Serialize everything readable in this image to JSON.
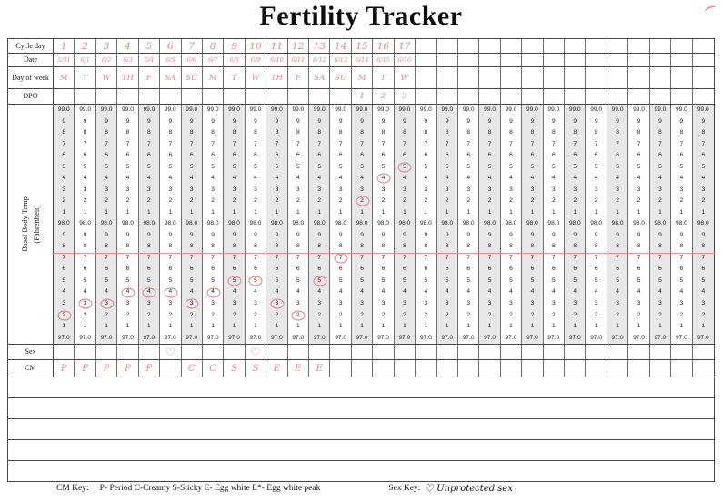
{
  "title": "Fertility Tracker",
  "columns": 31,
  "colors": {
    "ink": "#e88a7e",
    "grid_line": "#474747",
    "column_line": "#6e6e6e",
    "stripe": "#e8e8eb",
    "text": "#1f1f1f"
  },
  "rows": {
    "cycle_day": {
      "label": "Cycle day",
      "values": [
        "1",
        "2",
        "3",
        "4",
        "5",
        "6",
        "7",
        "8",
        "9",
        "10",
        "11",
        "12",
        "13",
        "14",
        "15",
        "16",
        "17"
      ]
    },
    "date": {
      "label": "Date",
      "values": [
        "5/31",
        "6/1",
        "6/2",
        "6/3",
        "6/4",
        "6/5",
        "6/6",
        "6/7",
        "6/8",
        "6/9",
        "6/10",
        "6/11",
        "6/12",
        "6/13",
        "6/14",
        "6/15",
        "6/16"
      ]
    },
    "day_of_week": {
      "label": "Day of week",
      "values": [
        "M",
        "T",
        "W",
        "TH",
        "F",
        "SA",
        "SU",
        "M",
        "T",
        "W",
        "TH",
        "F",
        "SA",
        "SU",
        "M",
        "T",
        "W"
      ]
    },
    "dpo": {
      "label": "DPO",
      "values": [
        "",
        "",
        "",
        "",
        "",
        "",
        "",
        "",
        "",
        "",
        "",
        "",
        "",
        "",
        "1",
        "2",
        "3"
      ]
    }
  },
  "bbt": {
    "label": "Basal Body Temp (Fahrenheit)",
    "label_line1": "Basal Body Temp",
    "label_line2": "(Fahrenheit)",
    "scale_top": 99.0,
    "scale": [
      "99.0",
      "9",
      "8",
      "7",
      "6",
      "5",
      "4",
      "3",
      "2",
      "1",
      "98.0",
      "9",
      "8",
      "7",
      "6",
      "5",
      "4",
      "3",
      "2",
      "1",
      "97.0"
    ],
    "readings": [
      {
        "day": 1,
        "temp": 97.2
      },
      {
        "day": 2,
        "temp": 97.3
      },
      {
        "day": 3,
        "temp": 97.3
      },
      {
        "day": 4,
        "temp": 97.4
      },
      {
        "day": 5,
        "temp": 97.4
      },
      {
        "day": 6,
        "temp": 97.4
      },
      {
        "day": 7,
        "temp": 97.3
      },
      {
        "day": 8,
        "temp": 97.4
      },
      {
        "day": 9,
        "temp": 97.5
      },
      {
        "day": 10,
        "temp": 97.5
      },
      {
        "day": 11,
        "temp": 97.3
      },
      {
        "day": 12,
        "temp": 97.2
      },
      {
        "day": 13,
        "temp": 97.5
      },
      {
        "day": 14,
        "temp": 97.7
      },
      {
        "day": 15,
        "temp": 98.2
      },
      {
        "day": 16,
        "temp": 98.4
      },
      {
        "day": 17,
        "temp": 98.5
      }
    ],
    "coverline_temp": 97.75
  },
  "sex": {
    "label": "Sex",
    "heart_symbol": "♡",
    "heart_days": [
      6,
      10
    ]
  },
  "cm": {
    "label": "CM",
    "values": [
      "P",
      "P",
      "P",
      "P",
      "P",
      "",
      "C",
      "C",
      "S",
      "S",
      "E",
      "E",
      "E"
    ]
  },
  "empty_rows": 5,
  "legend": {
    "cm_key_label": "CM Key:",
    "cm_key_text": "P- Period C-Creamy S-Sticky E- Egg white  E*- Egg white peak",
    "sex_key_label": "Sex Key:",
    "heart_symbol": "♡",
    "sex_key_text": "Unprotected sex"
  },
  "chart_data": {
    "type": "table",
    "title": "Fertility Tracker",
    "x": [
      1,
      2,
      3,
      4,
      5,
      6,
      7,
      8,
      9,
      10,
      11,
      12,
      13,
      14,
      15,
      16,
      17
    ],
    "xlabel": "Cycle day",
    "dates": [
      "5/31",
      "6/1",
      "6/2",
      "6/3",
      "6/4",
      "6/5",
      "6/6",
      "6/7",
      "6/8",
      "6/9",
      "6/10",
      "6/11",
      "6/12",
      "6/13",
      "6/14",
      "6/15",
      "6/16"
    ],
    "day_of_week": [
      "M",
      "T",
      "W",
      "TH",
      "F",
      "SA",
      "SU",
      "M",
      "T",
      "W",
      "TH",
      "F",
      "SA",
      "SU",
      "M",
      "T",
      "W"
    ],
    "dpo": [
      null,
      null,
      null,
      null,
      null,
      null,
      null,
      null,
      null,
      null,
      null,
      null,
      null,
      null,
      1,
      2,
      3
    ],
    "series": [
      {
        "name": "Basal Body Temp (Fahrenheit)",
        "values": [
          97.2,
          97.3,
          97.3,
          97.4,
          97.4,
          97.4,
          97.3,
          97.4,
          97.5,
          97.5,
          97.3,
          97.2,
          97.5,
          97.7,
          98.2,
          98.4,
          98.5
        ]
      }
    ],
    "ylim": [
      97.0,
      99.0
    ],
    "y_tick_step": 0.1,
    "coverline": 97.75,
    "sex_days": [
      6,
      10
    ],
    "cervical_mucus": [
      "P",
      "P",
      "P",
      "P",
      "P",
      null,
      "C",
      "C",
      "S",
      "S",
      "E",
      "E",
      "E",
      null,
      null,
      null,
      null
    ],
    "total_grid_columns": 31,
    "legend_position": "bottom"
  }
}
